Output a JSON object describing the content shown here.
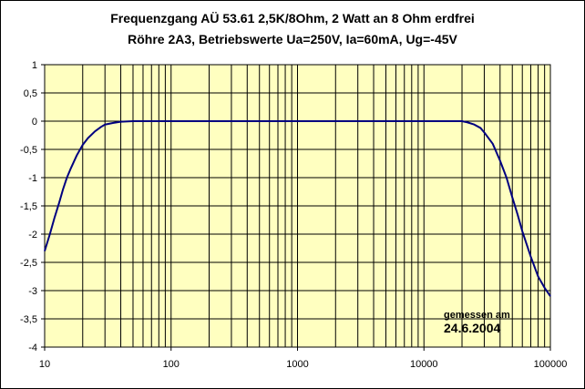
{
  "chart_data": {
    "type": "line",
    "title": "Frequenzgang AÜ 53.61 2,5K/8Ohm, 2 Watt an 8 Ohm erdfrei",
    "subtitle": "Röhre 2A3, Betriebswerte Ua=250V, Ia=60mA, Ug=-45V",
    "xlabel": "",
    "ylabel": "",
    "x_scale": "log",
    "xlim": [
      10,
      100000
    ],
    "ylim": [
      -4,
      1
    ],
    "x_ticks": [
      "10",
      "100",
      "1000",
      "10000",
      "100000"
    ],
    "y_ticks": [
      "1",
      "0,5",
      "0",
      "-0,5",
      "-1",
      "-1,5",
      "-2",
      "-2,5",
      "-3",
      "-3,5",
      "-4"
    ],
    "grid": true,
    "legend": "none",
    "annotation": {
      "line1": "gemessen am",
      "line2": "24.6.2004"
    },
    "colors": {
      "plot_background": "#FFFFC0",
      "line": "#000080",
      "grid": "#000000"
    },
    "series": [
      {
        "x": [
          10,
          11,
          12,
          13,
          14,
          15,
          16,
          18,
          20,
          22,
          25,
          28,
          30,
          35,
          40,
          50,
          100,
          1000,
          10000,
          20000,
          22000,
          25000,
          28000,
          30000,
          35000,
          40000,
          45000,
          50000,
          55000,
          60000,
          70000,
          80000,
          90000,
          100000
        ],
        "y": [
          -2.3,
          -2.0,
          -1.7,
          -1.45,
          -1.2,
          -1.0,
          -0.85,
          -0.6,
          -0.42,
          -0.3,
          -0.18,
          -0.1,
          -0.06,
          -0.03,
          -0.01,
          0,
          0,
          0,
          0,
          0,
          -0.02,
          -0.06,
          -0.12,
          -0.2,
          -0.4,
          -0.7,
          -1.0,
          -1.35,
          -1.65,
          -1.95,
          -2.4,
          -2.75,
          -2.95,
          -3.1
        ]
      }
    ]
  }
}
